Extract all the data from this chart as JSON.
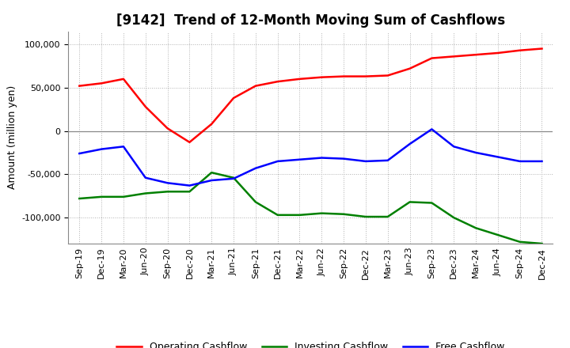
{
  "title": "[9142]  Trend of 12-Month Moving Sum of Cashflows",
  "ylabel": "Amount (million yen)",
  "x_labels": [
    "Sep-19",
    "Dec-19",
    "Mar-20",
    "Jun-20",
    "Sep-20",
    "Dec-20",
    "Mar-21",
    "Jun-21",
    "Sep-21",
    "Dec-21",
    "Mar-22",
    "Jun-22",
    "Sep-22",
    "Dec-22",
    "Mar-23",
    "Jun-23",
    "Sep-23",
    "Dec-23",
    "Mar-24",
    "Jun-24",
    "Sep-24",
    "Dec-24"
  ],
  "operating": [
    52000,
    55000,
    60000,
    28000,
    3000,
    -13000,
    8000,
    38000,
    52000,
    57000,
    60000,
    62000,
    63000,
    63000,
    64000,
    72000,
    84000,
    86000,
    88000,
    90000,
    93000,
    95000
  ],
  "investing": [
    -78000,
    -76000,
    -76000,
    -72000,
    -70000,
    -70000,
    -48000,
    -54000,
    -82000,
    -97000,
    -97000,
    -95000,
    -96000,
    -99000,
    -99000,
    -82000,
    -83000,
    -100000,
    -112000,
    -120000,
    -128000,
    -130000
  ],
  "free": [
    -26000,
    -21000,
    -18000,
    -54000,
    -60000,
    -63000,
    -57000,
    -55000,
    -43000,
    -35000,
    -33000,
    -31000,
    -32000,
    -35000,
    -34000,
    -15000,
    2000,
    -18000,
    -25000,
    -30000,
    -35000,
    -35000
  ],
  "operating_color": "#ff0000",
  "investing_color": "#008000",
  "free_color": "#0000ff",
  "ylim": [
    -130000,
    115000
  ],
  "yticks": [
    -100000,
    -50000,
    0,
    50000,
    100000
  ],
  "bg_color": "#ffffff",
  "grid_color": "#b0b0b0",
  "title_fontsize": 12,
  "label_fontsize": 9,
  "tick_fontsize": 8,
  "linewidth": 1.8
}
